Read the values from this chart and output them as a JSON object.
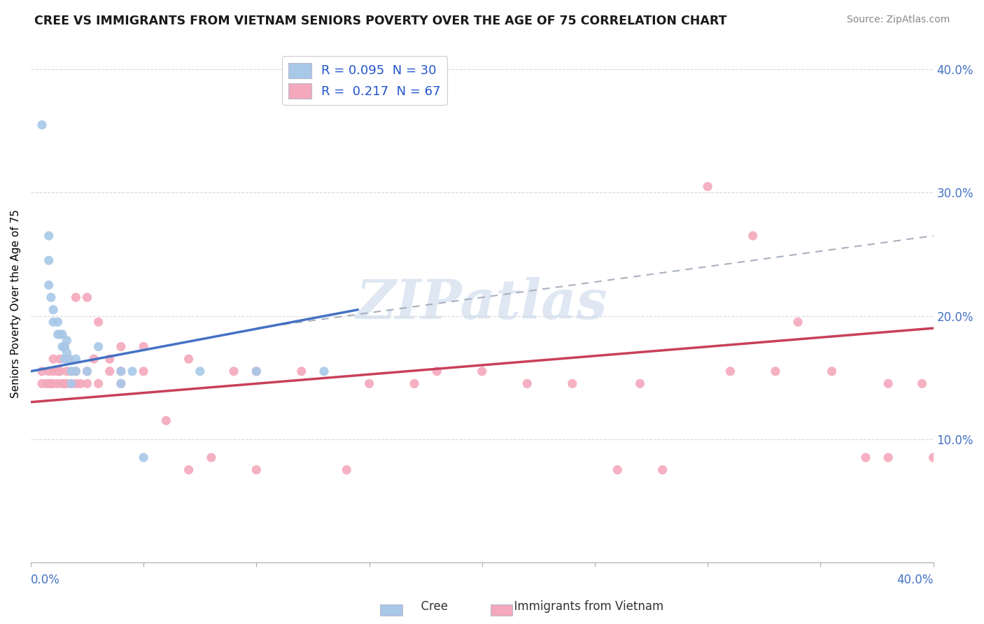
{
  "title": "CREE VS IMMIGRANTS FROM VIETNAM SENIORS POVERTY OVER THE AGE OF 75 CORRELATION CHART",
  "source": "Source: ZipAtlas.com",
  "ylabel": "Seniors Poverty Over the Age of 75",
  "xlim": [
    0.0,
    0.4
  ],
  "ylim": [
    0.0,
    0.42
  ],
  "right_yticks": [
    0.1,
    0.2,
    0.3,
    0.4
  ],
  "right_yticklabels": [
    "10.0%",
    "20.0%",
    "30.0%",
    "40.0%"
  ],
  "xtick_positions": [
    0.0,
    0.05,
    0.1,
    0.15,
    0.2,
    0.25,
    0.3,
    0.35,
    0.4
  ],
  "watermark": "ZIPatlas",
  "legend1_label": "R = 0.095  N = 30",
  "legend2_label": "R =  0.217  N = 67",
  "cree_color": "#a8c8e8",
  "viet_color": "#f4a8bc",
  "cree_line_color": "#4472c4",
  "viet_line_color": "#c8405a",
  "dashed_line_color": "#a0a8b8",
  "title_color": "#1a1a1a",
  "source_color": "#888888",
  "legend_text_color": "#2255cc",
  "axis_tick_color": "#4472c4",
  "grid_color": "#d8d8d8",
  "cree_x": [
    0.005,
    0.008,
    0.008,
    0.008,
    0.009,
    0.01,
    0.01,
    0.012,
    0.012,
    0.013,
    0.014,
    0.014,
    0.015,
    0.015,
    0.016,
    0.016,
    0.017,
    0.018,
    0.018,
    0.02,
    0.02,
    0.025,
    0.03,
    0.04,
    0.04,
    0.045,
    0.05,
    0.075,
    0.1,
    0.13
  ],
  "cree_y": [
    0.355,
    0.265,
    0.245,
    0.225,
    0.215,
    0.205,
    0.195,
    0.195,
    0.185,
    0.185,
    0.185,
    0.175,
    0.175,
    0.165,
    0.18,
    0.17,
    0.165,
    0.155,
    0.145,
    0.165,
    0.155,
    0.155,
    0.175,
    0.155,
    0.145,
    0.155,
    0.085,
    0.155,
    0.155,
    0.155
  ],
  "viet_x": [
    0.005,
    0.005,
    0.007,
    0.008,
    0.008,
    0.009,
    0.01,
    0.01,
    0.01,
    0.012,
    0.012,
    0.013,
    0.013,
    0.014,
    0.015,
    0.015,
    0.016,
    0.016,
    0.017,
    0.018,
    0.018,
    0.02,
    0.02,
    0.02,
    0.022,
    0.025,
    0.025,
    0.025,
    0.028,
    0.03,
    0.03,
    0.035,
    0.035,
    0.04,
    0.04,
    0.04,
    0.05,
    0.05,
    0.06,
    0.07,
    0.07,
    0.08,
    0.09,
    0.1,
    0.1,
    0.12,
    0.14,
    0.15,
    0.17,
    0.18,
    0.2,
    0.22,
    0.24,
    0.26,
    0.27,
    0.28,
    0.3,
    0.31,
    0.32,
    0.33,
    0.34,
    0.355,
    0.37,
    0.38,
    0.38,
    0.395,
    0.4
  ],
  "viet_y": [
    0.155,
    0.145,
    0.145,
    0.145,
    0.155,
    0.145,
    0.145,
    0.155,
    0.165,
    0.145,
    0.155,
    0.155,
    0.165,
    0.145,
    0.145,
    0.175,
    0.145,
    0.155,
    0.165,
    0.145,
    0.155,
    0.145,
    0.155,
    0.215,
    0.145,
    0.145,
    0.155,
    0.215,
    0.165,
    0.145,
    0.195,
    0.155,
    0.165,
    0.145,
    0.155,
    0.175,
    0.155,
    0.175,
    0.115,
    0.075,
    0.165,
    0.085,
    0.155,
    0.075,
    0.155,
    0.155,
    0.075,
    0.145,
    0.145,
    0.155,
    0.155,
    0.145,
    0.145,
    0.075,
    0.145,
    0.075,
    0.305,
    0.155,
    0.265,
    0.155,
    0.195,
    0.155,
    0.085,
    0.085,
    0.145,
    0.145,
    0.085
  ],
  "cree_line_x": [
    0.0,
    0.145
  ],
  "cree_line_y": [
    0.155,
    0.205
  ],
  "viet_line_x": [
    0.0,
    0.4
  ],
  "viet_line_y": [
    0.13,
    0.19
  ],
  "dashed_line_x": [
    0.1,
    0.4
  ],
  "dashed_line_y": [
    0.19,
    0.265
  ]
}
